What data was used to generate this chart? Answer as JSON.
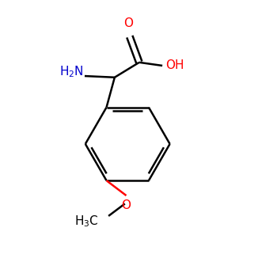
{
  "background_color": "#ffffff",
  "bond_color": "#000000",
  "oxygen_color": "#ff0000",
  "nitrogen_color": "#0000cc",
  "lw": 1.8,
  "figsize": [
    3.5,
    3.5
  ],
  "dpi": 100,
  "xlim": [
    0,
    10
  ],
  "ylim": [
    0,
    10
  ]
}
